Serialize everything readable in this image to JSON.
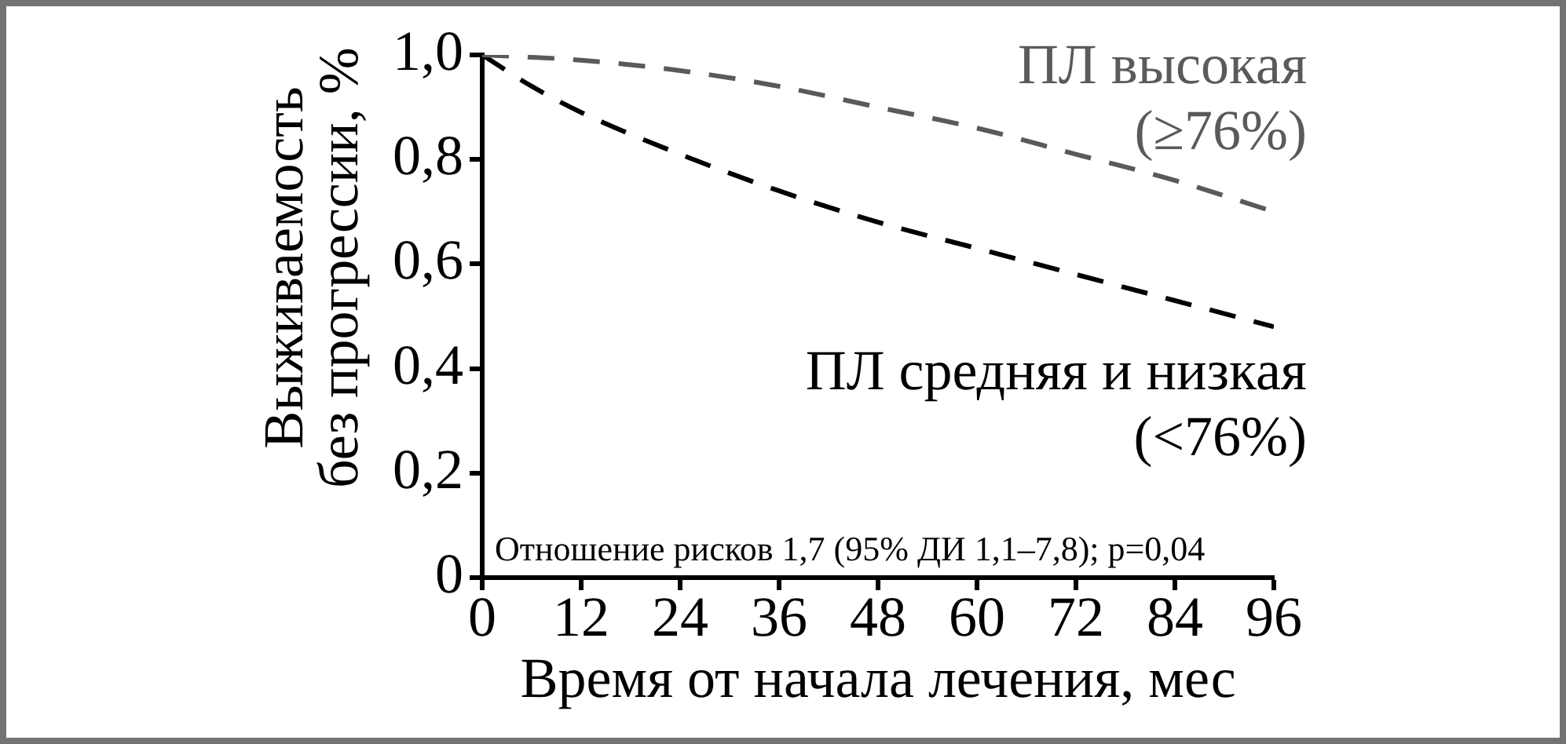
{
  "chart_data": {
    "type": "line",
    "xlabel": "Время от начала лечения, мес",
    "ylabel": "Выживаемость\nбез прогрессии, %",
    "x": [
      0,
      12,
      24,
      36,
      48,
      60,
      72,
      84,
      96
    ],
    "series": [
      {
        "name": "ПЛ высокая\n(≥76%)",
        "color": "#5a5a5a",
        "values": [
          1.0,
          0.99,
          0.97,
          0.94,
          0.9,
          0.86,
          0.81,
          0.76,
          0.7
        ]
      },
      {
        "name": "ПЛ средняя и низкая\n(<76%)",
        "color": "#000000",
        "x": [
          0,
          6,
          12,
          24,
          36,
          48,
          60,
          72,
          84,
          96
        ],
        "values": [
          1.0,
          0.94,
          0.89,
          0.81,
          0.74,
          0.68,
          0.63,
          0.58,
          0.53,
          0.48
        ]
      }
    ],
    "xlim": [
      0,
      96
    ],
    "xticks": [
      0,
      12,
      24,
      36,
      48,
      60,
      72,
      84,
      96
    ],
    "ylim": [
      0,
      1
    ],
    "yticks": [
      0,
      {
        "value": 0.2,
        "label": "0,2"
      },
      {
        "value": 0.4,
        "label": "0,4"
      },
      {
        "value": 0.6,
        "label": "0,6"
      },
      {
        "value": 0.8,
        "label": "0,8"
      },
      {
        "value": 1,
        "label": "1,0"
      }
    ],
    "line_style": "dashed",
    "marker": "none",
    "annotations": [
      "Отношение рисков 1,7 (95% ДИ 1,1–7,8); p=0,04"
    ]
  }
}
